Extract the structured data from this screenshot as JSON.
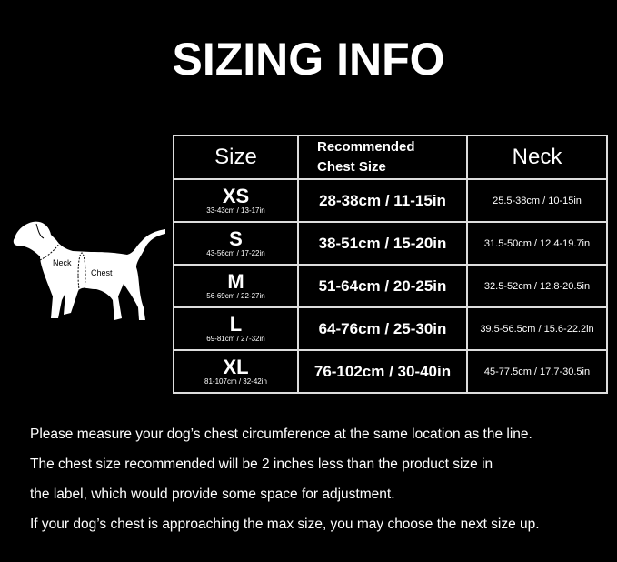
{
  "title": "SIZING INFO",
  "diagram": {
    "neck_label": "Neck",
    "chest_label": "Chest"
  },
  "table": {
    "headers": [
      "Size",
      "Recommended",
      "Chest Size",
      "Neck"
    ],
    "rows": [
      {
        "size": "XS",
        "size_range": "33-43cm / 13-17in",
        "chest": "28-38cm / 11-15in",
        "neck": "25.5-38cm / 10-15in"
      },
      {
        "size": "S",
        "size_range": "43-56cm / 17-22in",
        "chest": "38-51cm / 15-20in",
        "neck": "31.5-50cm / 12.4-19.7in"
      },
      {
        "size": "M",
        "size_range": "56-69cm / 22-27in",
        "chest": "51-64cm / 20-25in",
        "neck": "32.5-52cm / 12.8-20.5in"
      },
      {
        "size": "L",
        "size_range": "69-81cm / 27-32in",
        "chest": "64-76cm / 25-30in",
        "neck": "39.5-56.5cm / 15.6-22.2in"
      },
      {
        "size": "XL",
        "size_range": "81-107cm / 32-42in",
        "chest": "76-102cm / 30-40in",
        "neck": "45-77.5cm / 17.7-30.5in"
      }
    ]
  },
  "notes": [
    "Please measure your dog’s chest circumference at the same location as the line.",
    "The chest size recommended will be 2 inches less than the product size in",
    "the label, which would provide some space for adjustment.",
    "If your dog’s chest is approaching the max size, you may choose the next size up."
  ]
}
